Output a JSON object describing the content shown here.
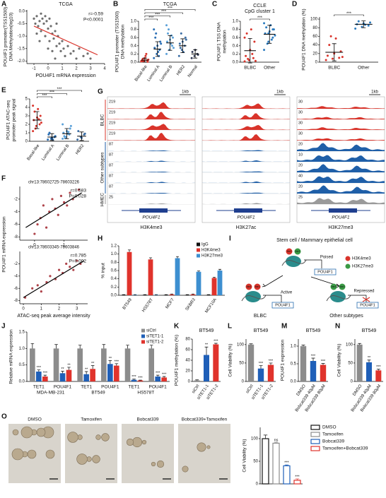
{
  "chart_data": [
    {
      "type": "scatter",
      "panel": "A",
      "title": "TCGA",
      "xlabel": "POU4F1 mRNA expression",
      "ylabel": [
        "POU4F1 promoter(TSS1500)",
        "DNA Methylation(log10)"
      ],
      "annotations": [
        "r=-0.59",
        "P<0.0001"
      ],
      "x": [
        -1,
        -0.9,
        -0.8,
        -0.7,
        -0.6,
        -0.5,
        -0.4,
        -0.3,
        -0.2,
        -0.1,
        0,
        0.1,
        0.2,
        0.3,
        0.4,
        0.5,
        0.6,
        0.7,
        0.8,
        0.9,
        1.0,
        1.1,
        1.2,
        1.4,
        1.6,
        1.8,
        2.0,
        2.2,
        2.5,
        2.8,
        3.0,
        -0.8,
        -0.5,
        -0.2,
        0.1,
        0.3,
        0.6,
        -0.6,
        0.0,
        0.5
      ],
      "y": [
        -0.3,
        -0.5,
        -0.2,
        -0.6,
        -0.4,
        -0.8,
        -0.3,
        -0.5,
        -1.0,
        -0.4,
        -0.7,
        -1.2,
        -0.6,
        -0.9,
        -1.1,
        -0.8,
        -1.4,
        -1.0,
        -1.3,
        -1.6,
        -1.2,
        -1.5,
        -1.8,
        -1.4,
        -1.7,
        -1.6,
        -1.9,
        -1.5,
        -1.8,
        -1.7,
        -1.9,
        -0.9,
        -0.1,
        -0.2,
        -0.3,
        -1.6,
        -0.5,
        -1.2,
        -1.5,
        -1.9
      ],
      "color": "#555555",
      "trend": {
        "x": [
          -1,
          3.5
        ],
        "y": [
          -0.6,
          -1.75
        ],
        "color": "#d9342b"
      },
      "xlim": [
        -1.5,
        4
      ],
      "xticks": [
        -1,
        0,
        1,
        2,
        3,
        4
      ],
      "ylim": [
        -2.1,
        0.05
      ],
      "yticks": [
        {
          "value": -2.0,
          "label": "-2.0"
        },
        -1.5,
        {
          "value": -1.0,
          "label": "-1.0"
        },
        -0.5,
        {
          "value": 0,
          "label": "0.0"
        }
      ]
    },
    {
      "type": "strip",
      "panel": "B",
      "title": "TCGA",
      "ylabel": [
        "POU4F1 promoter (TSS1500)",
        "DNA methylation"
      ],
      "rotate_labels": true,
      "categories": [
        "Basal-like",
        "Luminal A",
        "Luminal B",
        "HER2",
        "Normal"
      ],
      "colors": [
        "#d9342b",
        "#2b6fb5",
        "#5aa0d8",
        "#3b6ea5",
        "#333a55"
      ],
      "points": [
        [
          0.02,
          0.03,
          0.05,
          0.04,
          0.1,
          0.01,
          0.08,
          0.15,
          0.06,
          0.02,
          0.2,
          0.03
        ],
        [
          0.1,
          0.2,
          0.3,
          0.35,
          0.4,
          0.5,
          0.6,
          0.25,
          0.45,
          0.7,
          0.15,
          0.8
        ],
        [
          0.2,
          0.3,
          0.4,
          0.5,
          0.55,
          0.6,
          0.7,
          0.45,
          0.35,
          0.8,
          0.65,
          0.9
        ],
        [
          0.15,
          0.3,
          0.4,
          0.45,
          0.5,
          0.6,
          0.35,
          0.25,
          0.55,
          0.7
        ],
        [
          0.1,
          0.15,
          0.2,
          0.25,
          0.3,
          0.18
        ]
      ],
      "mean": [
        0.05,
        0.32,
        0.47,
        0.4,
        0.2
      ],
      "sd": [
        0.05,
        0.18,
        0.18,
        0.17,
        0.1
      ],
      "significance": [
        {
          "groups": [
            0,
            1
          ],
          "label": "***"
        },
        {
          "groups": [
            0,
            2
          ],
          "label": "***"
        },
        {
          "groups": [
            0,
            3
          ],
          "label": "***"
        },
        {
          "groups": [
            0,
            4
          ],
          "label": "***"
        }
      ],
      "ylim": [
        0,
        1.0
      ],
      "yticks": [
        {
          "value": 0,
          "label": "0.0"
        },
        0.2,
        0.4,
        0.6,
        0.8,
        {
          "value": 1.0,
          "label": "1.0"
        }
      ]
    },
    {
      "type": "strip",
      "panel": "C",
      "title": [
        "CCLE",
        "CpG cluster 1"
      ],
      "ylabel": [
        "POU4F1 TSS DNA",
        "methylation"
      ],
      "categories": [
        "BLBC",
        "Other"
      ],
      "colors": [
        "#d9342b",
        "#2b7bbf"
      ],
      "points": [
        [
          0.02,
          0.05,
          0.1,
          0.15,
          0.3,
          0.5,
          0.7,
          0.8,
          0.03,
          0.08,
          0.2,
          0.6
        ],
        [
          0.3,
          0.5,
          0.6,
          0.7,
          0.75,
          0.8,
          0.85,
          0.9,
          0.65,
          0.45,
          0.55,
          0.95,
          0.7,
          0.8
        ]
      ],
      "mean": [
        0.28,
        0.68
      ],
      "sd": [
        0.3,
        0.22
      ],
      "significance": [
        {
          "groups": [
            0,
            1
          ],
          "label": "***"
        }
      ],
      "ylim": [
        0,
        1.0
      ],
      "yticks": [
        {
          "value": 0,
          "label": "0.0"
        },
        0.2,
        0.4,
        0.6,
        0.8,
        {
          "value": 1.0,
          "label": "1.0"
        }
      ]
    },
    {
      "type": "strip",
      "panel": "D",
      "ylabel": [
        "POU4F1 DNA methylation (%)"
      ],
      "categories": [
        "BLBC",
        "Other"
      ],
      "colors": [
        "#d9342b",
        "#2b7bbf"
      ],
      "points": [
        [
          5,
          8,
          10,
          15,
          20,
          25,
          40,
          55,
          12,
          60
        ],
        [
          78,
          82,
          85,
          88,
          90,
          92,
          95,
          87
        ]
      ],
      "mean": [
        23,
        88
      ],
      "sd": [
        20,
        8
      ],
      "significance": [
        {
          "groups": [
            0,
            1
          ],
          "label": "***"
        }
      ],
      "ylim": [
        0,
        105
      ],
      "yticks": [
        0,
        20,
        40,
        60,
        80,
        100
      ]
    },
    {
      "type": "strip",
      "panel": "E",
      "ylabel": [
        "POU4F1 ATAC-seq",
        "promoter peak signal"
      ],
      "rotate_labels": true,
      "categories": [
        "Basal-like",
        "Luminal A",
        "Luminal B",
        "HER2"
      ],
      "colors": [
        "#d9342b",
        "#2b6fb5",
        "#5aa0d8",
        "#3b6ea5"
      ],
      "points": [
        [
          1.2,
          1.8,
          2.0,
          2.5,
          2.8,
          3.0,
          3.5,
          3.8,
          2.2,
          1.5,
          2.6,
          4.2
        ],
        [
          0.2,
          0.3,
          0.5,
          0.8,
          0.4,
          0.6,
          1.0,
          0.2
        ],
        [
          0.3,
          0.5,
          0.8,
          1.0,
          1.2,
          1.5,
          0.6,
          0.9,
          1.8,
          0.4,
          1.1,
          2.0
        ],
        [
          0.2,
          0.5,
          0.8,
          1.2,
          0.4,
          0.9
        ]
      ],
      "mean": [
        2.5,
        0.5,
        0.9,
        0.6
      ],
      "sd": [
        1.0,
        0.4,
        0.6,
        0.5
      ],
      "significance": [
        {
          "groups": [
            0,
            1
          ],
          "label": "***"
        },
        {
          "groups": [
            0,
            2
          ],
          "label": "***"
        },
        {
          "groups": [
            0,
            3
          ],
          "label": "***"
        }
      ],
      "ylim": [
        0,
        5
      ],
      "yticks": [
        0,
        1,
        2,
        3,
        4,
        5
      ]
    },
    {
      "type": "scatter",
      "panel": "F",
      "subtitle": "chr13:78602725-78603226",
      "ylabel": [
        "POU4F1 mRNA expression"
      ],
      "annotations": [
        "r=0.583",
        "P=0.028"
      ],
      "x": [
        0.0,
        0.1,
        0.2,
        0.3,
        0.5,
        0.6,
        0.7,
        0.8,
        0.9,
        1.0,
        1.1,
        1.2,
        1.3,
        0.4,
        1.5
      ],
      "y": [
        -7.5,
        -6,
        -5,
        -3,
        -4,
        -2,
        -3.5,
        -4.5,
        -1.5,
        -2.5,
        -3,
        -1,
        -2,
        -6.5,
        -0.5
      ],
      "color": "#a0222a",
      "trend": {
        "x": [
          -0.3,
          1.6
        ],
        "y": [
          -6.5,
          -1.0
        ],
        "color": "#000000"
      },
      "xlim": [
        -0.5,
        1.8
      ],
      "xticks": [
        0,
        1
      ],
      "ylim": [
        -8.5,
        0
      ],
      "yticks": [
        -8,
        -6,
        -4,
        -2
      ]
    },
    {
      "type": "scatter",
      "subtitle": "chr13:78603345-78603846",
      "xlabel": "ATAC-seq peak average intensity",
      "annotations": [
        "r=0.785",
        "P=0.002"
      ],
      "x": [
        0.1,
        0.5,
        0.8,
        1.0,
        1.3,
        1.5,
        1.8,
        2.0,
        2.2,
        2.4,
        2.6,
        2.8,
        3.0,
        3.2
      ],
      "y": [
        -7.5,
        -6,
        -5.5,
        -6.5,
        -5,
        -4,
        -4.5,
        -3,
        -3.5,
        -2,
        -2.5,
        -3,
        -1.5,
        -2
      ],
      "color": "#a0222a",
      "trend": {
        "x": [
          0,
          3.4
        ],
        "y": [
          -7.5,
          -1.5
        ],
        "color": "#000000"
      },
      "xlim": [
        -0.2,
        3.6
      ],
      "xticks": [
        0,
        1,
        2,
        3
      ],
      "ylim": [
        -8.5,
        0
      ],
      "yticks": [
        -8,
        -6,
        -4,
        -2
      ]
    },
    {
      "type": "tracks",
      "panel": "G",
      "groups": [
        "BLBC",
        "Other subtypes",
        "HMEC"
      ],
      "group_rows": [
        4,
        5,
        1
      ],
      "group_colors": [
        "#d9342b",
        "#1f5fa8",
        "#9a9a9a"
      ],
      "gene": "POU4F1",
      "scale_bar": "1kb",
      "columns": [
        {
          "mark": "H3K4me3",
          "scales": [
            219,
            219,
            219,
            219,
            87,
            87,
            87,
            87,
            87,
            25
          ]
        },
        {
          "mark": "H3K27ac"
        },
        {
          "mark": "H3K27me3",
          "scales": [
            30,
            30,
            30,
            30,
            20,
            10,
            20,
            40,
            20,
            25
          ]
        }
      ]
    },
    {
      "type": "bar",
      "panel": "H",
      "ylabel": [
        "% input"
      ],
      "legend": "upper right",
      "categories": [
        "BT549",
        "HS578T",
        "MCF7",
        "SKBR3",
        "MCF10A"
      ],
      "rotate_labels": true,
      "series": [
        {
          "name": "IgG",
          "color": "#111111",
          "values": [
            0.01,
            0.01,
            0.01,
            0.01,
            0.01
          ],
          "errors": [
            0.005,
            0.005,
            0.005,
            0.005,
            0.005
          ]
        },
        {
          "name": "H3K4me3",
          "color": "#e0332c",
          "values": [
            1.05,
            0.87,
            0.02,
            0.02,
            0.42
          ],
          "errors": [
            0.05,
            0.04,
            0.01,
            0.01,
            0.02
          ]
        },
        {
          "name": "H3K27me3",
          "color": "#3d8fd0",
          "values": [
            0.01,
            0.01,
            0.9,
            0.57,
            0.6
          ],
          "errors": [
            0.005,
            0.005,
            0.04,
            0.02,
            0.03
          ]
        }
      ],
      "ylim": [
        0,
        1.2
      ],
      "yticks": [
        {
          "value": 0,
          "label": "0.0"
        },
        0.2,
        0.4,
        0.6,
        0.8,
        {
          "value": 1.0,
          "label": "1.0"
        },
        1.2
      ]
    },
    {
      "type": "diagram",
      "panel": "I",
      "title": "Stem cell / Mammary epithelial cell",
      "gene": "POU4F1",
      "mod": "Me3",
      "states": [
        "Poised",
        "Active",
        "Repressed"
      ],
      "outcomes": [
        "BLBC",
        "Other subtypes"
      ],
      "legend": [
        {
          "name": "H3K4me3",
          "color": "#d9342b"
        },
        {
          "name": "H3K27me3",
          "color": "#3a9a45"
        }
      ]
    },
    {
      "type": "bar",
      "panel": "J",
      "ylabel": [
        "Relative mRNA expression"
      ],
      "legend": "upper right",
      "categories": [
        "TET1",
        "POU4F1",
        "TET1",
        "POU4F1",
        "TET1",
        "POU4F1"
      ],
      "groups": [
        "MDA-MB-231",
        "BT549",
        "HS578T"
      ],
      "series": [
        {
          "name": "siCtrl",
          "color": "#8c8c8c",
          "values": [
            1,
            1,
            1,
            1,
            1,
            1
          ],
          "errors": [
            0.15,
            0.12,
            0.1,
            0.12,
            0.1,
            0.1
          ],
          "stars": [
            null,
            null,
            null,
            null,
            null,
            null
          ]
        },
        {
          "name": "siTET1-1",
          "color": "#1f5fb8",
          "values": [
            0.3,
            0.25,
            0.22,
            0.53,
            0.05,
            0.15
          ],
          "errors": [
            0.05,
            0.06,
            0.08,
            0.1,
            0.02,
            0.04
          ],
          "stars": [
            "***",
            "**",
            "**",
            "**",
            "***",
            "***"
          ]
        },
        {
          "name": "siTET1-2",
          "color": "#e0332c",
          "values": [
            0.15,
            0.35,
            0.38,
            0.48,
            0.03,
            0.12
          ],
          "errors": [
            0.04,
            0.08,
            0.1,
            0.06,
            0.01,
            0.03
          ],
          "stars": [
            "***",
            "**",
            "**",
            "***",
            "***",
            "***"
          ]
        }
      ],
      "ylim": [
        0,
        1.5
      ],
      "yticks": [
        {
          "value": 0,
          "label": "0.0"
        },
        0.5,
        {
          "value": 1.0,
          "label": "1.0"
        },
        1.5
      ]
    },
    {
      "type": "bar",
      "panel": "K",
      "title": "BT549",
      "ylabel": [
        "POU4F1 methylation (%)"
      ],
      "rotate_labels": true,
      "categories": [
        "siCtrl",
        "siTET1-1",
        "siTET1-2"
      ],
      "colors": [
        "#8c8c8c",
        "#1f5fb8",
        "#e0332c"
      ],
      "values": [
        2,
        50,
        70
      ],
      "errors": [
        1,
        15,
        2
      ],
      "stars": [
        null,
        "**",
        "***"
      ],
      "ylim": [
        0,
        80
      ],
      "yticks": [
        0,
        20,
        40,
        60,
        80
      ]
    },
    {
      "type": "bar",
      "panel": "L",
      "title": "BT549",
      "ylabel": [
        "Cell Viability (%)"
      ],
      "rotate_labels": true,
      "categories": [
        "siCtrl",
        "siTET1-1",
        "siTET1-2"
      ],
      "colors": [
        "#8c8c8c",
        "#1f5fb8",
        "#e0332c"
      ],
      "values": [
        100,
        35,
        45
      ],
      "errors": [
        2,
        8,
        5
      ],
      "stars": [
        null,
        "***",
        "***"
      ],
      "ylim": [
        0,
        115
      ],
      "yticks": [
        0,
        50,
        100
      ]
    },
    {
      "type": "bar",
      "panel": "M",
      "title": "BT549",
      "ylabel": [
        "POU4F1 expression"
      ],
      "rotate_labels": true,
      "categories": [
        "DMSO",
        "Bobcat339 40μM",
        "Bobcat339 80μM"
      ],
      "colors": [
        "#8c8c8c",
        "#1f5fb8",
        "#e0332c"
      ],
      "values": [
        1.0,
        0.58,
        0.47
      ],
      "errors": [
        0.03,
        0.08,
        0.04
      ],
      "stars": [
        null,
        "***",
        "***"
      ],
      "ylim": [
        0,
        1.2
      ],
      "yticks": [
        {
          "value": 0,
          "label": "0.0"
        },
        0.5,
        {
          "value": 1.0,
          "label": "1.0"
        }
      ]
    },
    {
      "type": "bar",
      "panel": "N",
      "title": "BT549",
      "ylabel": [
        "Cell Viability (%)"
      ],
      "rotate_labels": true,
      "categories": [
        "DMSO",
        "Bobcat339 40μM",
        "Bobcat339 80μM"
      ],
      "colors": [
        "#8c8c8c",
        "#1f5fb8",
        "#e0332c"
      ],
      "values": [
        100,
        52,
        30
      ],
      "errors": [
        3,
        6,
        3
      ],
      "stars": [
        null,
        "**",
        "***"
      ],
      "ylim": [
        0,
        115
      ],
      "yticks": [
        0,
        50,
        100
      ]
    },
    {
      "type": "images",
      "panel": "O",
      "labels": [
        "DMSO",
        "Tamoxifen",
        "Bobcat339",
        "Bobcat339+Tamoxifen"
      ]
    },
    {
      "type": "bar",
      "ylabel": [
        "Cell Viability (%)"
      ],
      "legend": "right",
      "outline": true,
      "categories": [
        "DMSO",
        "Tamoxifen",
        "Bobcat339",
        "Tamoxifen+Bobcat339"
      ],
      "colors": [
        "#111111",
        "#8c8c8c",
        "#1f5fb8",
        "#e0332c"
      ],
      "values": [
        100,
        90,
        40,
        8
      ],
      "errors": [
        8,
        2,
        2,
        3
      ],
      "stars": [
        null,
        "ns",
        "***",
        "***"
      ],
      "ylim": [
        0,
        125
      ],
      "yticks": [
        0,
        50,
        100
      ]
    }
  ]
}
